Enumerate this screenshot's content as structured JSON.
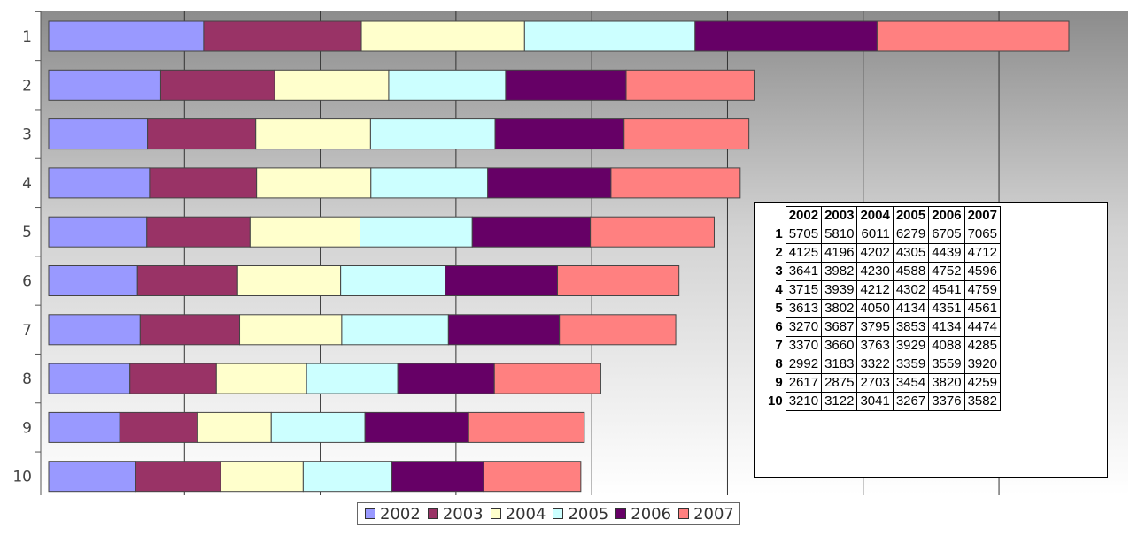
{
  "chart_data": {
    "type": "bar",
    "orientation": "horizontal",
    "stacked": true,
    "categories": [
      "1",
      "2",
      "3",
      "4",
      "5",
      "6",
      "7",
      "8",
      "9",
      "10"
    ],
    "series": [
      {
        "name": "2002",
        "color": "#9999ff",
        "values": [
          5705,
          4125,
          3641,
          3715,
          3613,
          3270,
          3370,
          2992,
          2617,
          3210
        ]
      },
      {
        "name": "2003",
        "color": "#993366",
        "values": [
          5810,
          4196,
          3982,
          3939,
          3802,
          3687,
          3660,
          3183,
          2875,
          3122
        ]
      },
      {
        "name": "2004",
        "color": "#ffffcc",
        "values": [
          6011,
          4202,
          4230,
          4212,
          4050,
          3795,
          3763,
          3322,
          2703,
          3041
        ]
      },
      {
        "name": "2005",
        "color": "#ccffff",
        "values": [
          6279,
          4305,
          4588,
          4302,
          4134,
          3853,
          3929,
          3359,
          3454,
          3267
        ]
      },
      {
        "name": "2006",
        "color": "#660066",
        "values": [
          6705,
          4439,
          4752,
          4541,
          4351,
          4134,
          4088,
          3559,
          3820,
          3376
        ]
      },
      {
        "name": "2007",
        "color": "#ff8080",
        "values": [
          7065,
          4712,
          4596,
          4759,
          4561,
          4474,
          4285,
          3920,
          4259,
          3582
        ]
      }
    ],
    "xlim": [
      0,
      40000
    ],
    "grid": true,
    "legend": "bottom",
    "data_table": true
  },
  "table": {
    "headers": [
      "2002",
      "2003",
      "2004",
      "2005",
      "2006",
      "2007"
    ]
  }
}
